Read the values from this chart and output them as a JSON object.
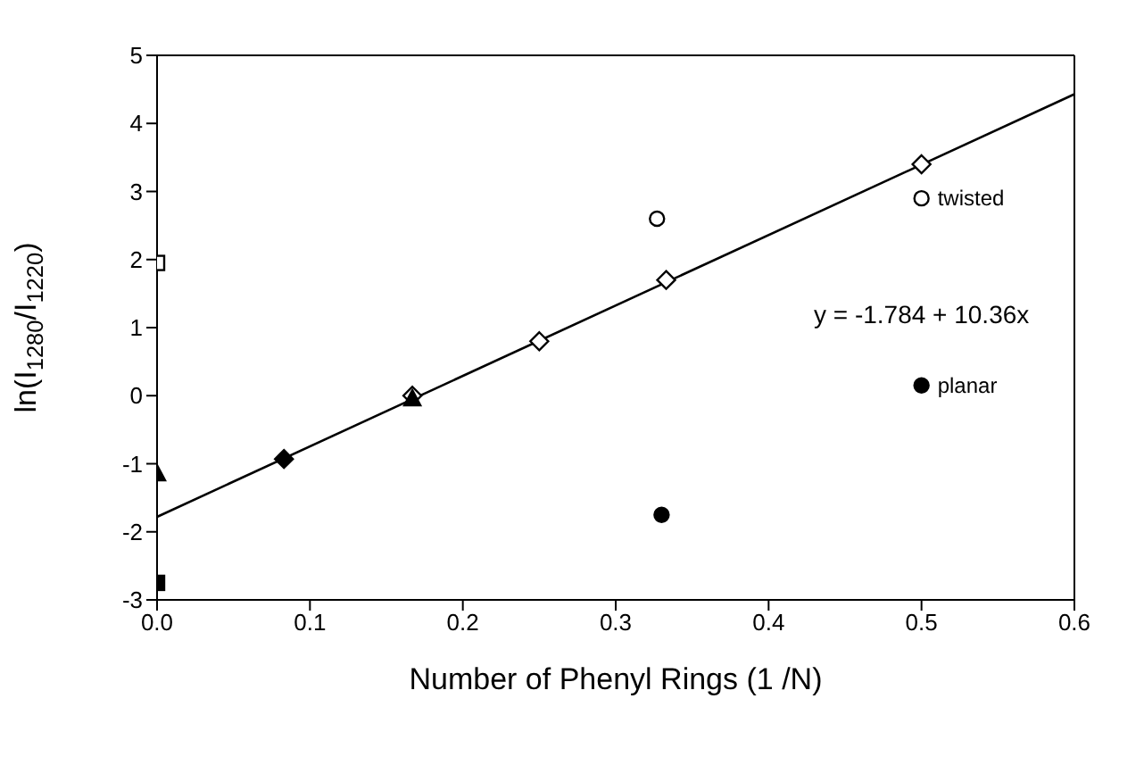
{
  "chart_data": {
    "type": "scatter",
    "xlabel": "Number of Phenyl Rings (1 /N)",
    "ylabel": "ln(I$_{1280}$/I$_{1220}$)",
    "xlim": [
      0,
      0.6
    ],
    "xticks": [
      {
        "value": 0,
        "label": "0.0"
      },
      0.1,
      0.2,
      0.3,
      0.4,
      0.5,
      0.6
    ],
    "ylim": [
      -3,
      5
    ],
    "yticks": [
      -3,
      -2,
      -1,
      0,
      1,
      2,
      3,
      4,
      5
    ],
    "grid": false,
    "legend": false,
    "series": [
      {
        "marker": "diamond",
        "color": "#ffffff",
        "x": [
          0.167,
          0.25,
          0.333,
          0.5
        ],
        "values": [
          0,
          0.8,
          1.7,
          3.4
        ]
      },
      {
        "marker": "diamond",
        "color": "#000000",
        "x": [
          0.083
        ],
        "values": [
          -0.93
        ]
      },
      {
        "marker": "triangle",
        "color": "#000000",
        "x": [
          0.167,
          0
        ],
        "values": [
          -0.05,
          -1.15
        ]
      },
      {
        "marker": "square",
        "color": "#ffffff",
        "x": [
          0
        ],
        "values": [
          1.95
        ]
      },
      {
        "marker": "square",
        "color": "#000000",
        "x": [
          0
        ],
        "values": [
          -2.75
        ]
      },
      {
        "marker": "circle",
        "color": "#ffffff",
        "x": [
          0.327,
          0.5
        ],
        "values": [
          2.6,
          2.9
        ]
      },
      {
        "marker": "circle",
        "color": "#000000",
        "x": [
          0.33,
          0.5
        ],
        "values": [
          -1.75,
          0.15
        ]
      },
      {
        "type": "line",
        "marker": "none",
        "color": "#000000",
        "x": [
          0,
          0.6
        ],
        "values": [
          -1.78,
          4.43
        ]
      }
    ],
    "annotations": [
      "y = -1.784 + 10.36x",
      {
        "text": "twisted",
        "x": 0.5,
        "y": 2.9
      },
      {
        "text": "planar",
        "x": 0.5,
        "y": 0.15
      }
    ]
  }
}
